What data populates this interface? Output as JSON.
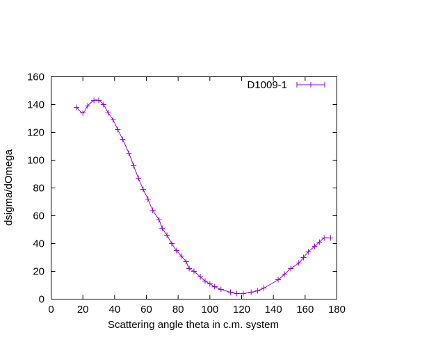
{
  "chart_data": {
    "type": "line",
    "title": "",
    "xlabel": "Scattering angle theta in c.m. system",
    "ylabel": "dsigma/dOmega",
    "xlim": [
      0,
      180
    ],
    "ylim": [
      0,
      160
    ],
    "xticks": [
      0,
      20,
      40,
      60,
      80,
      100,
      120,
      140,
      160,
      180
    ],
    "yticks": [
      0,
      20,
      40,
      60,
      80,
      100,
      120,
      140,
      160
    ],
    "grid": false,
    "legend": "top-right",
    "series": [
      {
        "name": "D1009-1",
        "color": "#9400d3",
        "marker": "plus",
        "x": [
          16,
          20,
          23,
          27,
          30,
          33,
          36,
          39,
          42,
          45,
          49,
          52,
          55,
          58,
          61,
          64,
          68,
          70,
          73,
          76,
          79,
          82,
          85,
          87,
          90,
          94,
          97,
          100,
          103,
          107,
          113,
          117,
          121,
          126,
          130,
          134,
          143,
          147,
          151,
          156,
          159,
          162,
          166,
          169,
          172,
          176
        ],
        "y": [
          138,
          134,
          139,
          143,
          143,
          140,
          134,
          129,
          122,
          115,
          105,
          96,
          87,
          79,
          72,
          64,
          57,
          51,
          46,
          40,
          35,
          31,
          27,
          22,
          20,
          16,
          13,
          11,
          9,
          7,
          5,
          4,
          4,
          5,
          6,
          8,
          14,
          18,
          22,
          26,
          30,
          34,
          38,
          41,
          44,
          44
        ]
      }
    ]
  }
}
